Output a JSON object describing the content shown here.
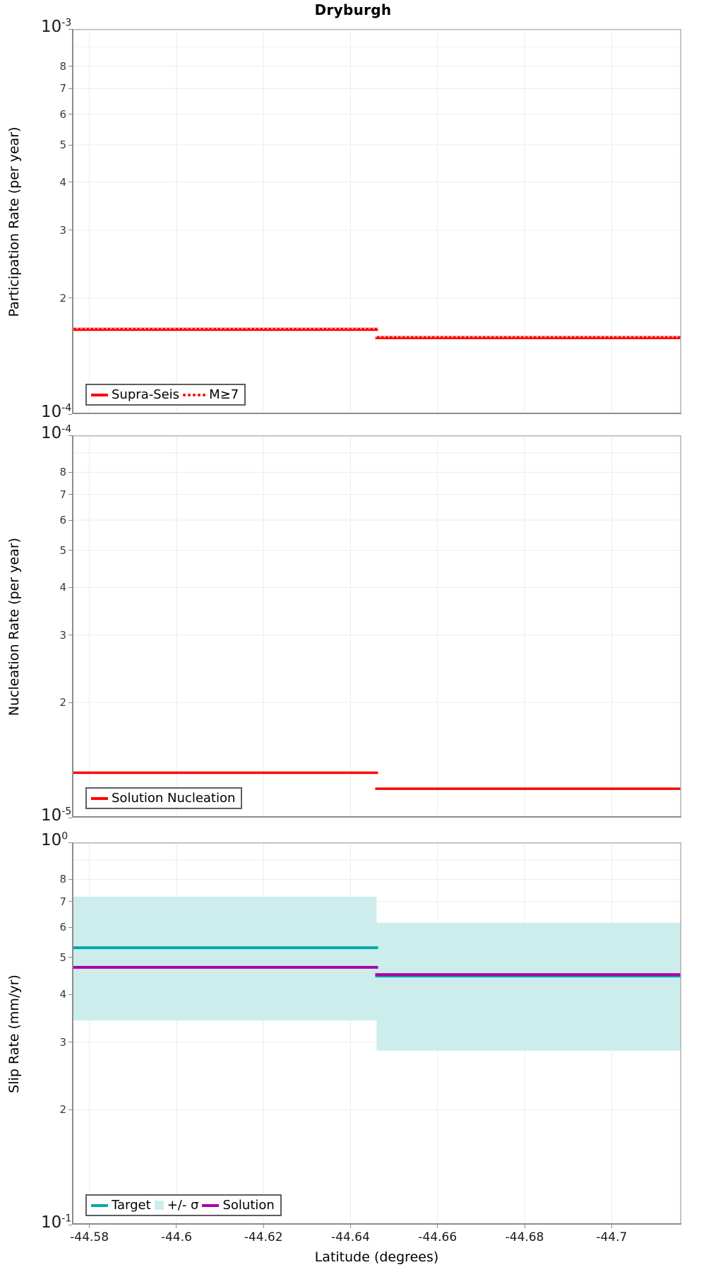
{
  "figure": {
    "title": "Dryburgh",
    "xlabel": "Latitude (degrees)",
    "background": "#ffffff",
    "grid_color": "#ececec",
    "border_light": "#b3b3b3",
    "border_dark": "#8c8c8c"
  },
  "x_axis": {
    "label": "Latitude (degrees)",
    "xlim": [
      -44.576,
      -44.716
    ],
    "ticks": [
      {
        "value": -44.58,
        "label": "-44.58"
      },
      {
        "value": -44.6,
        "label": "-44.6"
      },
      {
        "value": -44.62,
        "label": "-44.62"
      },
      {
        "value": -44.64,
        "label": "-44.64"
      },
      {
        "value": -44.66,
        "label": "-44.66"
      },
      {
        "value": -44.68,
        "label": "-44.68"
      },
      {
        "value": -44.7,
        "label": "-44.7"
      }
    ]
  },
  "chart_data": [
    {
      "type": "step-line",
      "id": "participation",
      "ylabel": "Participation Rate (per year)",
      "yscale": "log",
      "ylim": [
        0.0001,
        0.001
      ],
      "y_power_top": {
        "base": "10",
        "exp": "-3"
      },
      "y_power_bottom": {
        "base": "10",
        "exp": "-4"
      },
      "y_minor_ticks": [
        8,
        7,
        6,
        5,
        4,
        3,
        2
      ],
      "xlim": [
        -44.576,
        -44.716
      ],
      "x_split": -44.646,
      "series": [
        {
          "name": "Supra-Seis",
          "color": "#ff0000",
          "style": "solid",
          "width": 4.5,
          "left_y": 0.000166,
          "right_y": 0.000158
        },
        {
          "name": "M≥7",
          "color": "#ffb3b3",
          "style": "dotted",
          "width": 2.5,
          "left_y": 0.000166,
          "right_y": 0.000158
        }
      ],
      "legend": [
        {
          "label": "Supra-Seis",
          "swatch": "line",
          "color": "#ff0000"
        },
        {
          "label": "M≥7",
          "swatch": "dotted-line",
          "color": "#ff0000"
        }
      ]
    },
    {
      "type": "step-line",
      "id": "nucleation",
      "ylabel": "Nucleation Rate (per year)",
      "yscale": "log",
      "ylim": [
        1e-05,
        0.0001
      ],
      "y_power_top": {
        "base": "10",
        "exp": "-4"
      },
      "y_power_bottom": {
        "base": "10",
        "exp": "-5"
      },
      "y_minor_ticks": [
        8,
        7,
        6,
        5,
        4,
        3,
        2
      ],
      "xlim": [
        -44.576,
        -44.716
      ],
      "x_split": -44.646,
      "series": [
        {
          "name": "Solution Nucleation",
          "color": "#ff0000",
          "style": "solid",
          "width": 3.5,
          "left_y": 1.31e-05,
          "right_y": 1.19e-05
        }
      ],
      "legend": [
        {
          "label": "Solution Nucleation",
          "swatch": "line",
          "color": "#ff0000"
        }
      ]
    },
    {
      "type": "step-line",
      "id": "slip-rate",
      "ylabel": "Slip Rate (mm/yr)",
      "yscale": "log",
      "ylim": [
        0.1,
        1.0
      ],
      "y_power_top": {
        "base": "10",
        "exp": "0"
      },
      "y_power_bottom": {
        "base": "10",
        "exp": "-1"
      },
      "y_minor_ticks": [
        8,
        7,
        6,
        5,
        4,
        3,
        2
      ],
      "xlim": [
        -44.576,
        -44.716
      ],
      "x_split": -44.646,
      "band": {
        "name": "+/- σ",
        "color": "#cdeded",
        "left": [
          0.342,
          0.721
        ],
        "right": [
          0.285,
          0.616
        ]
      },
      "series": [
        {
          "name": "Target",
          "color": "#00a8a8",
          "style": "solid",
          "width": 4,
          "left_y": 0.53,
          "right_y": 0.447
        },
        {
          "name": "Solution",
          "color": "#aa00aa",
          "style": "solid",
          "width": 4,
          "left_y": 0.471,
          "right_y": 0.451
        }
      ],
      "legend": [
        {
          "label": "Target",
          "swatch": "line",
          "color": "#00a8a8"
        },
        {
          "label": "+/- σ",
          "swatch": "patch",
          "color": "#cdeded"
        },
        {
          "label": "Solution",
          "swatch": "line",
          "color": "#aa00aa"
        }
      ]
    }
  ]
}
